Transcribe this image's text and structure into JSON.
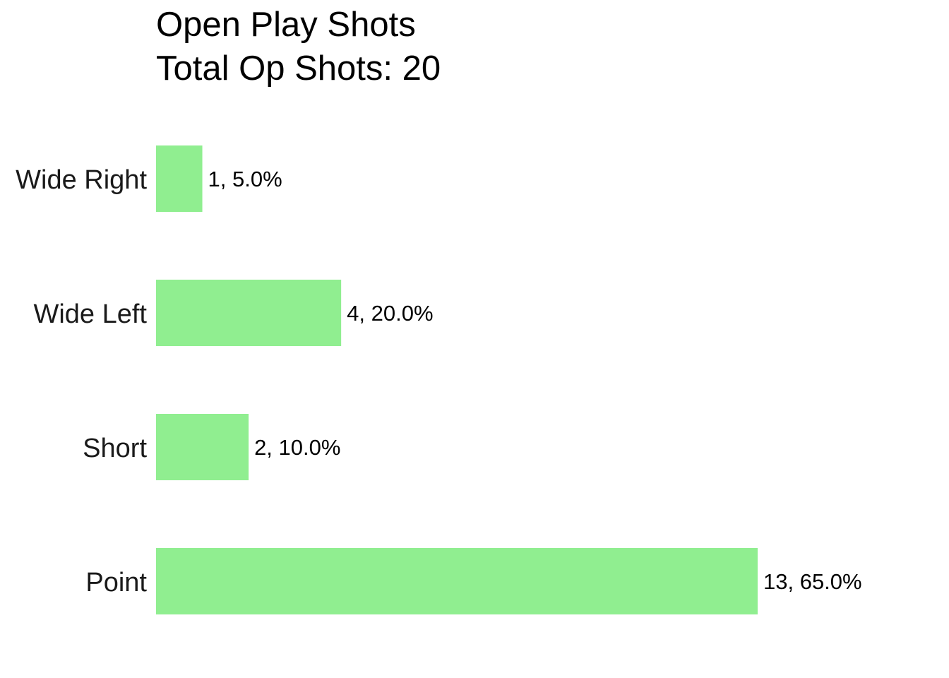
{
  "chart_data": {
    "type": "bar",
    "orientation": "horizontal",
    "title": "Open Play Shots",
    "subtitle": "Total Op Shots: 20",
    "categories": [
      "Wide Right",
      "Wide Left",
      "Short",
      "Point"
    ],
    "values": [
      1,
      4,
      2,
      13
    ],
    "value_labels": [
      "1, 5.0%",
      "4, 20.0%",
      "2, 10.0%",
      "13, 65.0%"
    ],
    "color": "#90ee90",
    "xlim": [
      0,
      13
    ]
  }
}
